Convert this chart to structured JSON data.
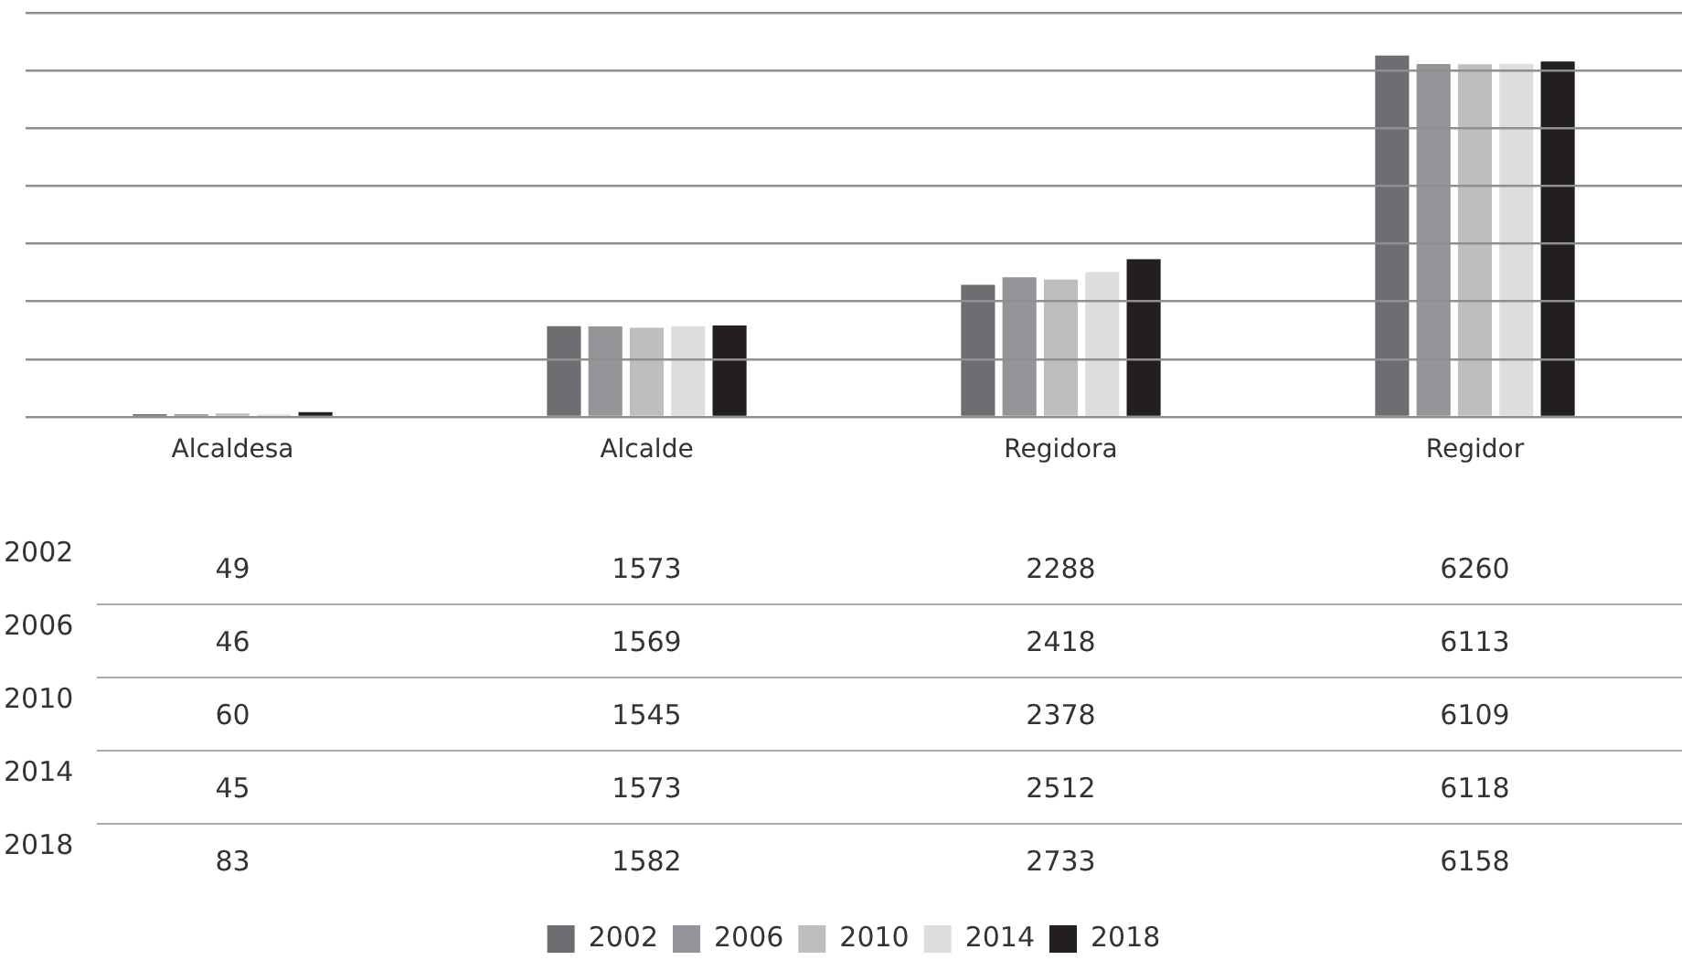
{
  "chart_data": {
    "type": "bar",
    "categories": [
      "Alcaldesa",
      "Alcalde",
      "Regidora",
      "Regidor"
    ],
    "series": [
      {
        "name": "2002",
        "color": "#6d6e71",
        "values": [
          49,
          1573,
          2288,
          6260
        ]
      },
      {
        "name": "2006",
        "color": "#939598",
        "values": [
          46,
          1569,
          2418,
          6113
        ]
      },
      {
        "name": "2010",
        "color": "#bcbec0",
        "values": [
          60,
          1545,
          2378,
          6109
        ]
      },
      {
        "name": "2014",
        "color": "#dcdddf",
        "values": [
          45,
          1573,
          2512,
          6118
        ]
      },
      {
        "name": "2018",
        "color": "#231f20",
        "values": [
          83,
          1582,
          2733,
          6158
        ]
      }
    ],
    "ylim": [
      0,
      7000
    ],
    "yticks": [
      {
        "value": 0,
        "label": null
      },
      {
        "value": 1000,
        "label": null
      },
      {
        "value": 2000,
        "label": null
      },
      {
        "value": 3000,
        "label": null
      },
      {
        "value": 4000,
        "label": null
      },
      {
        "value": 5000,
        "label": null
      },
      {
        "value": 6000,
        "label": null
      },
      {
        "value": 7000,
        "label": null
      }
    ],
    "tick_labels": "x",
    "grid": "y",
    "legend": "bottom",
    "data_labels": true
  }
}
